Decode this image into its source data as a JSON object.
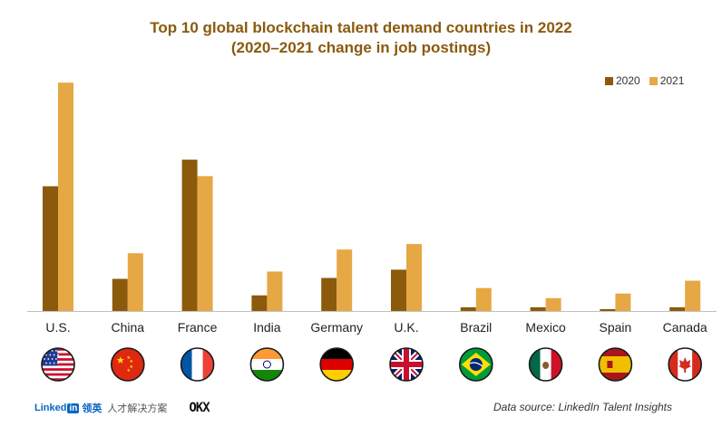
{
  "chart_data": {
    "type": "bar",
    "title_line1": "Top 10 global blockchain talent demand countries in 2022",
    "title_line2": "(2020–2021 change in job postings)",
    "xlabel": "",
    "ylabel": "",
    "categories": [
      "U.S.",
      "China",
      "France",
      "India",
      "Germany",
      "U.K.",
      "Brazil",
      "Mexico",
      "Spain",
      "Canada"
    ],
    "series": [
      {
        "name": "2020",
        "color": "#8b5a0c",
        "values": [
          136,
          35,
          165,
          17,
          36,
          45,
          4,
          4,
          2,
          4
        ]
      },
      {
        "name": "2021",
        "color": "#e6a844",
        "values": [
          249,
          63,
          147,
          43,
          67,
          73,
          25,
          14,
          19,
          33
        ]
      }
    ],
    "ylim": [
      0,
      260
    ],
    "grid": false,
    "legend_position": "top-right",
    "flag_icons": [
      "us-flag-icon",
      "china-flag-icon",
      "france-flag-icon",
      "india-flag-icon",
      "germany-flag-icon",
      "uk-flag-icon",
      "brazil-flag-icon",
      "mexico-flag-icon",
      "spain-flag-icon",
      "canada-flag-icon"
    ]
  },
  "footer": {
    "linkedin_word": "Linked",
    "linkedin_in": "in",
    "linkedin_cn": "领英",
    "linkedin_sub": "人才解决方案",
    "okx_logo": "OKX",
    "source": "Data source: LinkedIn Talent Insights"
  }
}
